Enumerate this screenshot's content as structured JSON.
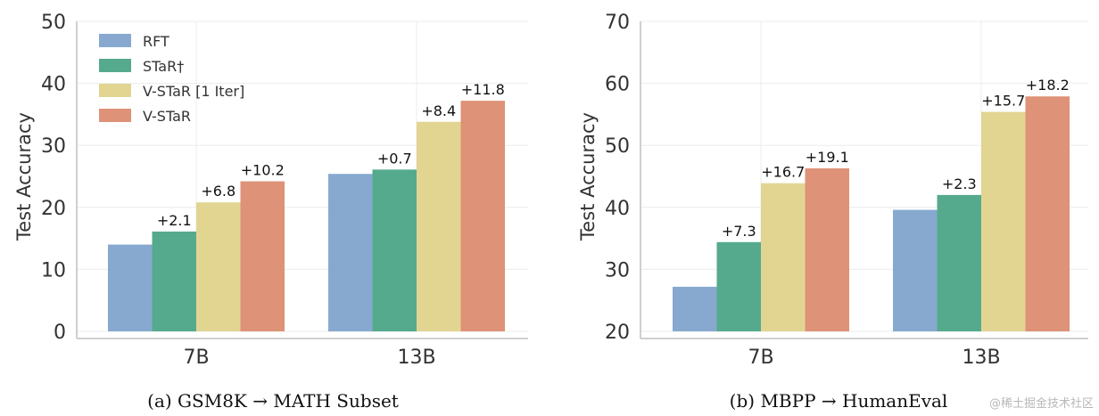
{
  "chart_data": [
    {
      "type": "bar",
      "categories": [
        "7B",
        "13B"
      ],
      "ylabel": "Test Accuracy",
      "ylim": [
        0,
        50
      ],
      "yticks": [
        0,
        10,
        20,
        30,
        40,
        50
      ],
      "grid": true,
      "legend_position": "top-left",
      "caption": "(a) GSM8K → MATH Subset",
      "series": [
        {
          "name": "RFT",
          "color": "#87A9CF",
          "values": [
            14.0,
            25.4
          ],
          "labels": [
            "",
            ""
          ]
        },
        {
          "name": "STaR†",
          "color": "#55AA8D",
          "values": [
            16.1,
            26.1
          ],
          "labels": [
            "+2.1",
            "+0.7"
          ]
        },
        {
          "name": "V-STaR [1 Iter]",
          "color": "#E2D592",
          "values": [
            20.8,
            33.8
          ],
          "labels": [
            "+6.8",
            "+8.4"
          ]
        },
        {
          "name": "V-STaR",
          "color": "#DE9277",
          "values": [
            24.2,
            37.2
          ],
          "labels": [
            "+10.2",
            "+11.8"
          ]
        }
      ]
    },
    {
      "type": "bar",
      "categories": [
        "7B",
        "13B"
      ],
      "ylabel": "Test Accuracy",
      "ylim": [
        20,
        70
      ],
      "yticks": [
        20,
        30,
        40,
        50,
        60,
        70
      ],
      "grid": true,
      "caption": "(b) MBPP → HumanEval",
      "series": [
        {
          "name": "RFT",
          "color": "#87A9CF",
          "values": [
            27.2,
            39.6
          ],
          "labels": [
            "",
            ""
          ]
        },
        {
          "name": "STaR†",
          "color": "#55AA8D",
          "values": [
            34.4,
            42.0
          ],
          "labels": [
            "+7.3",
            "+2.3"
          ]
        },
        {
          "name": "V-STaR [1 Iter]",
          "color": "#E2D592",
          "values": [
            43.9,
            55.4
          ],
          "labels": [
            "+16.7",
            "+15.7"
          ]
        },
        {
          "name": "V-STaR",
          "color": "#DE9277",
          "values": [
            46.3,
            57.9
          ],
          "labels": [
            "+19.1",
            "+18.2"
          ]
        }
      ]
    }
  ],
  "watermark": "@稀土掘金技术社区"
}
